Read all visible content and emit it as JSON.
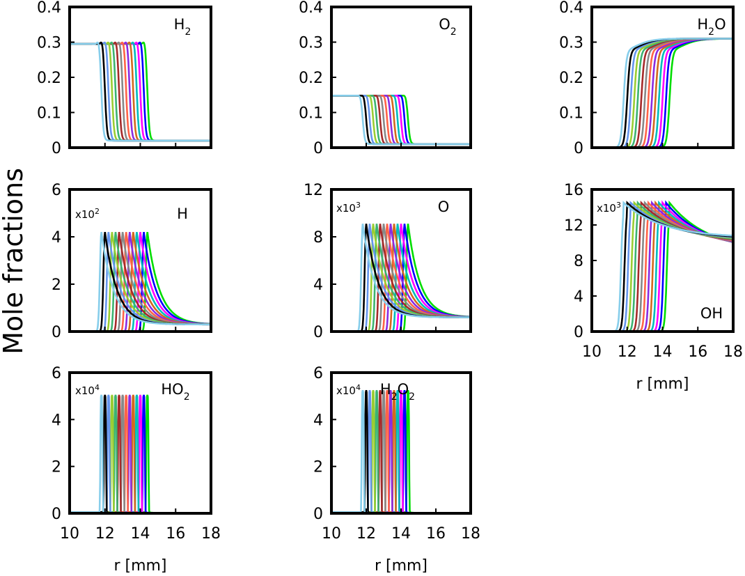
{
  "figure": {
    "ylabel": "Mole fractions",
    "xlabel": "r [mm]"
  },
  "colors": [
    "#00dd00",
    "#0000ff",
    "#ff00ff",
    "#00bbbb",
    "#d2691e",
    "#8a2be2",
    "#ff6347",
    "#888888",
    "#a52a2a",
    "#3cb371",
    "#9acd32",
    "#6495ed",
    "#000000",
    "#87ceeb",
    "#ff0000"
  ],
  "chart_data": [
    {
      "type": "line",
      "species": "H₂",
      "xlim": [
        10,
        18
      ],
      "ylim": [
        0,
        0.4
      ],
      "yticks": [
        "0",
        "0.1",
        "0.2",
        "0.3",
        "0.4"
      ],
      "xticks": [],
      "scale_label": "",
      "front_positions_mm": [
        14.4,
        14.2,
        14.0,
        13.8,
        13.6,
        13.4,
        13.2,
        13.0,
        12.8,
        12.6,
        12.4,
        12.2,
        12.0,
        11.8
      ],
      "series_shape": {
        "kind": "step_down",
        "initial": 0.295,
        "bump": 0.31,
        "final": 0.02
      }
    },
    {
      "type": "line",
      "species": "O₂",
      "xlim": [
        10,
        18
      ],
      "ylim": [
        0,
        0.4
      ],
      "yticks": [
        "0",
        "0.1",
        "0.2",
        "0.3",
        "0.4"
      ],
      "xticks": [],
      "scale_label": "",
      "front_positions_mm": [
        14.4,
        14.2,
        14.0,
        13.8,
        13.6,
        13.4,
        13.2,
        13.0,
        12.8,
        12.6,
        12.4,
        12.2,
        12.0,
        11.8
      ],
      "series_shape": {
        "kind": "step_down",
        "initial": 0.148,
        "bump": 0.152,
        "final": 0.01
      }
    },
    {
      "type": "line",
      "species": "H₂O",
      "xlim": [
        10,
        18
      ],
      "ylim": [
        0,
        0.4
      ],
      "yticks": [
        "0",
        "0.1",
        "0.2",
        "0.3",
        "0.4"
      ],
      "xticks": [],
      "scale_label": "",
      "front_positions_mm": [
        14.4,
        14.2,
        14.0,
        13.8,
        13.6,
        13.4,
        13.2,
        13.0,
        12.8,
        12.6,
        12.4,
        12.2,
        12.0,
        11.8
      ],
      "series_shape": {
        "kind": "step_up",
        "final": 0.31
      }
    },
    {
      "type": "line",
      "species": "H",
      "xlim": [
        10,
        18
      ],
      "ylim": [
        0,
        6
      ],
      "yticks": [
        "0",
        "2",
        "4",
        "6"
      ],
      "xticks": [],
      "scale_label": "x10",
      "scale_exp": "2",
      "front_positions_mm": [
        14.4,
        14.2,
        14.0,
        13.8,
        13.6,
        13.4,
        13.2,
        13.0,
        12.8,
        12.6,
        12.4,
        12.2,
        12.0,
        11.8
      ],
      "series_shape": {
        "kind": "peak",
        "peak": 4.2,
        "tail": 0.3
      }
    },
    {
      "type": "line",
      "species": "O",
      "xlim": [
        10,
        18
      ],
      "ylim": [
        0,
        12
      ],
      "yticks": [
        "0",
        "4",
        "8",
        "12"
      ],
      "xticks": [],
      "scale_label": "x10",
      "scale_exp": "3",
      "front_positions_mm": [
        14.4,
        14.2,
        14.0,
        13.8,
        13.6,
        13.4,
        13.2,
        13.0,
        12.8,
        12.6,
        12.4,
        12.2,
        12.0,
        11.8
      ],
      "series_shape": {
        "kind": "peak",
        "peak": 9.1,
        "tail": 1.2
      }
    },
    {
      "type": "line",
      "species": "OH",
      "xlim": [
        10,
        18
      ],
      "ylim": [
        0,
        16
      ],
      "yticks": [
        "0",
        "4",
        "8",
        "12",
        "16"
      ],
      "xticks": [
        "10",
        "12",
        "14",
        "16",
        "18"
      ],
      "xlabel": "r [mm]",
      "scale_label": "x10",
      "scale_exp": "3",
      "front_positions_mm": [
        14.4,
        14.2,
        14.0,
        13.8,
        13.6,
        13.4,
        13.2,
        13.0,
        12.8,
        12.6,
        12.4,
        12.2,
        12.0,
        11.8
      ],
      "series_shape": {
        "kind": "rise_decay",
        "peak": 14.5,
        "tail": 9.0
      }
    },
    {
      "type": "line",
      "species": "HO₂",
      "xlim": [
        10,
        18
      ],
      "ylim": [
        0,
        6
      ],
      "yticks": [
        "0",
        "2",
        "4",
        "6"
      ],
      "xticks": [
        "10",
        "12",
        "14",
        "16",
        "18"
      ],
      "xlabel": "r [mm]",
      "scale_label": "x10",
      "scale_exp": "4",
      "front_positions_mm": [
        14.4,
        14.2,
        14.0,
        13.8,
        13.6,
        13.4,
        13.2,
        13.0,
        12.8,
        12.6,
        12.4,
        12.2,
        12.0,
        11.8
      ],
      "series_shape": {
        "kind": "spike",
        "peak": 5.0
      }
    },
    {
      "type": "line",
      "species": "H₂O₂",
      "xlim": [
        10,
        18
      ],
      "ylim": [
        0,
        6
      ],
      "yticks": [
        "0",
        "2",
        "4",
        "6"
      ],
      "xticks": [
        "10",
        "12",
        "14",
        "16",
        "18"
      ],
      "xlabel": "r [mm]",
      "scale_label": "x10",
      "scale_exp": "4",
      "front_positions_mm": [
        14.4,
        14.2,
        14.0,
        13.8,
        13.6,
        13.4,
        13.2,
        13.0,
        12.8,
        12.6,
        12.4,
        12.2,
        12.0,
        11.8
      ],
      "series_shape": {
        "kind": "spike",
        "peak": 5.2
      }
    }
  ]
}
